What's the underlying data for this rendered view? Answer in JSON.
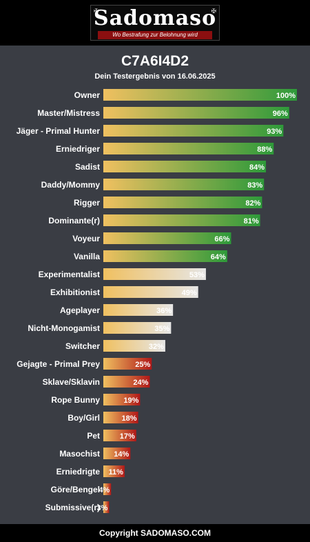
{
  "header": {
    "logo_text": "Sadomaso",
    "tagline": "Wo Bestrafung zur Belohnung wird"
  },
  "title": "C7A6I4D2",
  "subtitle": "Dein Testergebnis von 16.06.2025",
  "chart_data": {
    "type": "bar",
    "orientation": "horizontal",
    "categories": [
      "Owner",
      "Master/Mistress",
      "Jäger - Primal Hunter",
      "Erniedriger",
      "Sadist",
      "Daddy/Mommy",
      "Rigger",
      "Dominante(r)",
      "Voyeur",
      "Vanilla",
      "Experimentalist",
      "Exhibitionist",
      "Ageplayer",
      "Nicht-Monogamist",
      "Switcher",
      "Gejagte - Primal Prey",
      "Sklave/Sklavin",
      "Rope Bunny",
      "Boy/Girl",
      "Pet",
      "Masochist",
      "Erniedrigte",
      "Göre/Bengel",
      "Submissive(r)"
    ],
    "values": [
      100,
      96,
      93,
      88,
      84,
      83,
      82,
      81,
      66,
      64,
      53,
      49,
      36,
      35,
      32,
      25,
      24,
      19,
      18,
      17,
      14,
      11,
      4,
      3
    ],
    "value_labels": [
      "100%",
      "96%",
      "93%",
      "88%",
      "84%",
      "83%",
      "82%",
      "81%",
      "66%",
      "64%",
      "53%",
      "49%",
      "36%",
      "35%",
      "32%",
      "25%",
      "24%",
      "19%",
      "18%",
      "17%",
      "14%",
      "11%",
      "4%",
      "3%"
    ],
    "xlim": [
      0,
      100
    ],
    "colors": {
      "start": "#f0c060",
      "high": "#2e9a3a",
      "mid": "#e6e6e6",
      "low": "#b01818"
    }
  },
  "footer": {
    "copyright": "Copyright SADOMASO.COM"
  }
}
